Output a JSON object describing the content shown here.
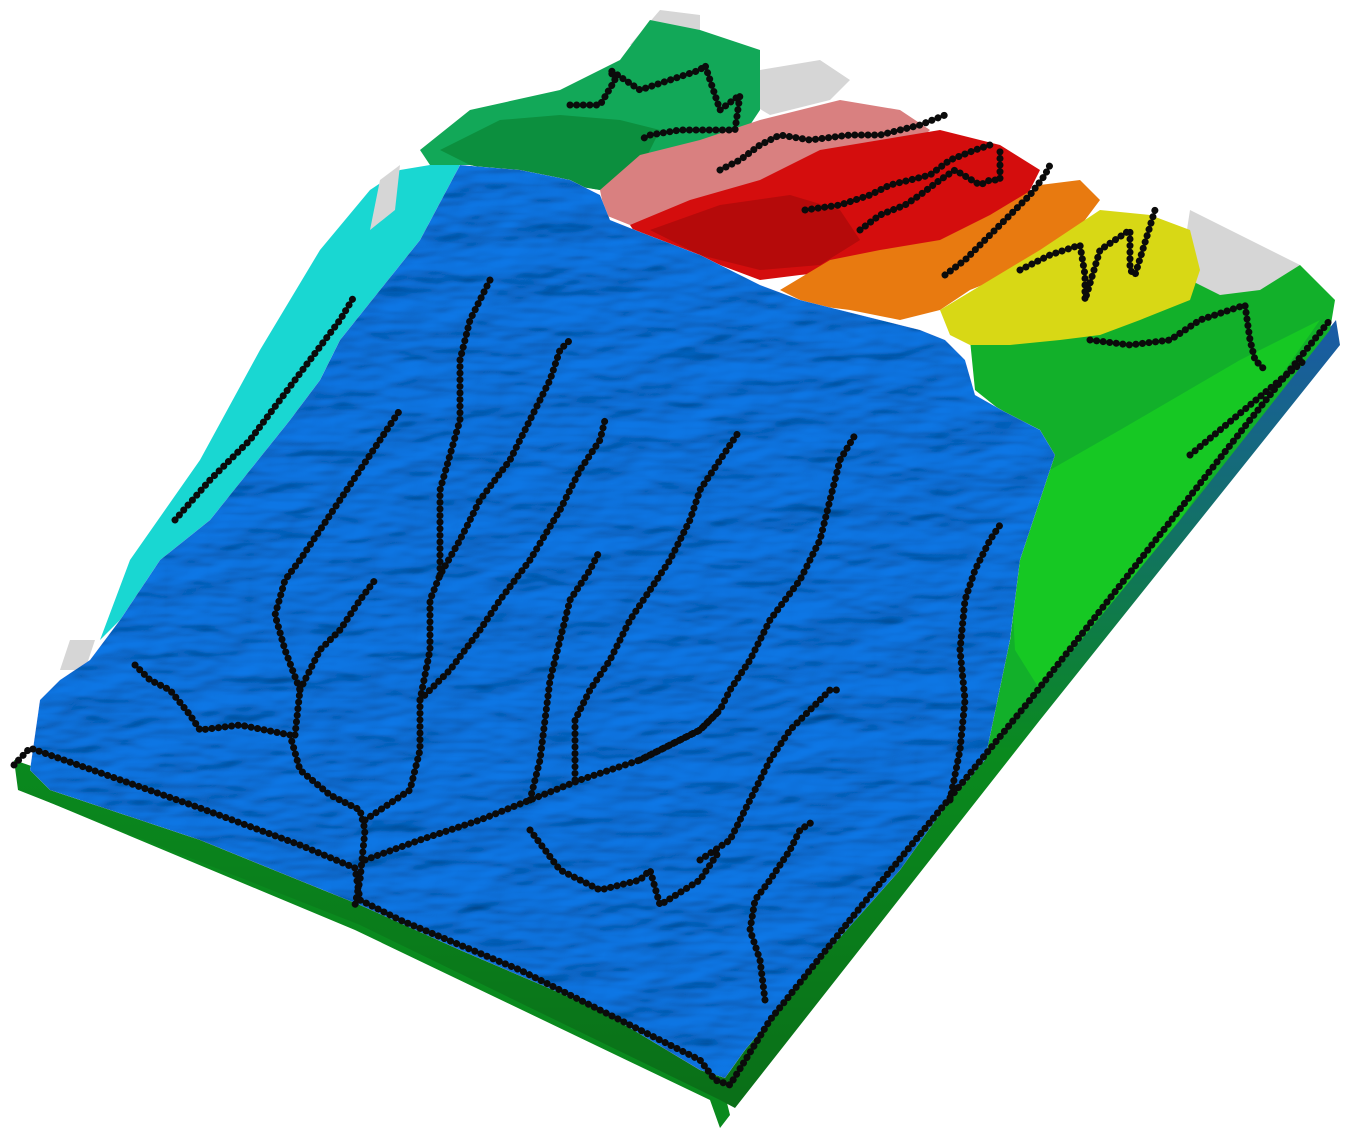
{
  "scene": {
    "subject": "terrain-surface",
    "colors": {
      "base_edge": "#0a8a1e",
      "base_under": "#1a5aa8",
      "main_basin": "#0a78e8",
      "left_basin": "#19d7d2",
      "top_green": "#12a858",
      "top_green_dark": "#0c8f3e",
      "right_green": "#12b02a",
      "right_green_light": "#16c823",
      "red_basin": "#d40d0d",
      "red_dark": "#b50a0a",
      "pink_basin": "#d98080",
      "orange_basin": "#e87a10",
      "yellow_basin": "#d8d815",
      "grey_patch": "#d6d6d6",
      "channel": "#0b0b0b"
    },
    "regions": [
      "base-edge",
      "right-green-basin",
      "left-cyan-basin",
      "top-green-basin",
      "pink-basin",
      "red-basin",
      "orange-basin",
      "yellow-basin",
      "grey-patch",
      "main-blue-basin"
    ]
  }
}
